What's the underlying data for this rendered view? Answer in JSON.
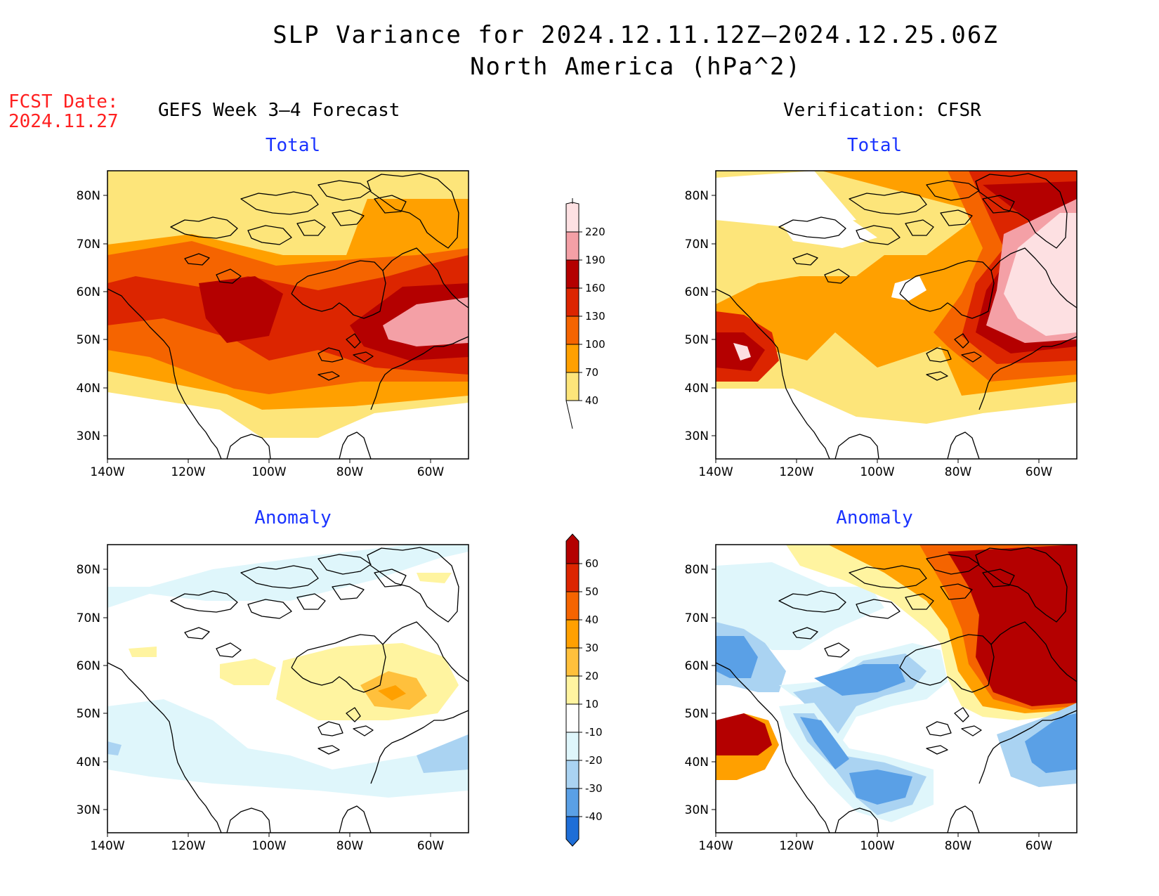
{
  "title": {
    "line1": "SLP Variance for 2024.12.11.12Z–2024.12.25.06Z",
    "line2": "North America (hPa^2)"
  },
  "fcst": {
    "label": "FCST Date:",
    "date": "2024.11.27"
  },
  "columns": {
    "left": "GEFS Week 3–4 Forecast",
    "right": "Verification: CFSR"
  },
  "panel_titles": {
    "total": "Total",
    "anomaly": "Anomaly"
  },
  "axes": {
    "lat_ticks": [
      "80N",
      "70N",
      "60N",
      "50N",
      "40N",
      "30N"
    ],
    "lon_ticks": [
      "140W",
      "120W",
      "100W",
      "80W",
      "60W"
    ]
  },
  "colorbars": {
    "total": {
      "labels": [
        "220",
        "190",
        "160",
        "130",
        "100",
        "70",
        "40"
      ],
      "colors": [
        "#fde0e2",
        "#f4a0a6",
        "#b40000",
        "#dc2500",
        "#f56400",
        "#ffa000",
        "#fde57a"
      ]
    },
    "anomaly": {
      "labels": [
        "60",
        "50",
        "40",
        "30",
        "20",
        "10",
        "-10",
        "-20",
        "-30",
        "-40"
      ],
      "colors": [
        "#b40000",
        "#dc2500",
        "#f56400",
        "#ffa000",
        "#ffc03c",
        "#fff4a0",
        "#ffffff",
        "#dff6fb",
        "#aad3f2",
        "#5aa0e6",
        "#1e6ed7"
      ]
    }
  },
  "colors": {
    "fcst": "#ff2020",
    "subtitle": "#1a33ff"
  }
}
